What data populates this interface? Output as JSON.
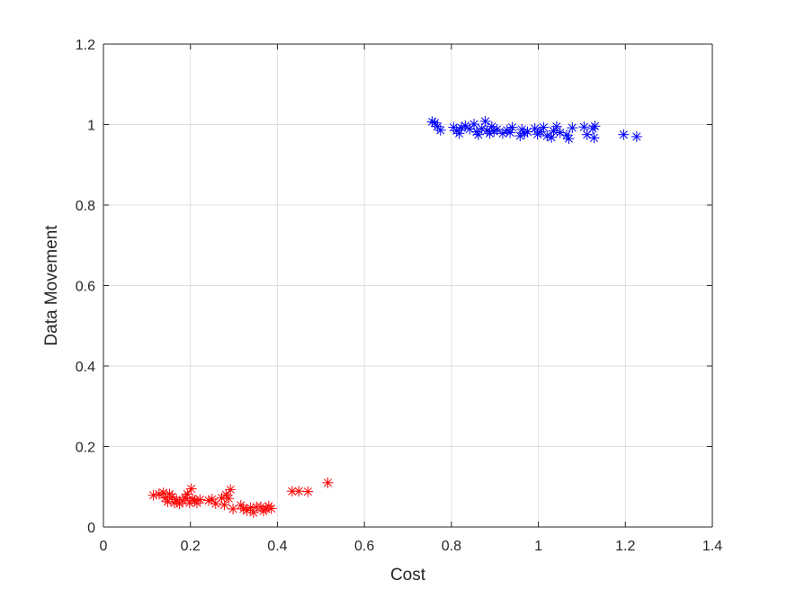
{
  "chart_data": {
    "type": "scatter",
    "title": "",
    "xlabel": "Cost",
    "ylabel": "Data Movement",
    "xlim": [
      0,
      1.4
    ],
    "ylim": [
      0,
      1.2
    ],
    "xticks": [
      0,
      0.2,
      0.4,
      0.6,
      0.8,
      1.0,
      1.2,
      1.4
    ],
    "xtick_labels": [
      "0",
      "0.2",
      "0.4",
      "0.6",
      "0.8",
      "1",
      "1.2",
      "1.4"
    ],
    "yticks": [
      0,
      0.2,
      0.4,
      0.6,
      0.8,
      1.0,
      1.2
    ],
    "ytick_labels": [
      "0",
      "0.2",
      "0.4",
      "0.6",
      "0.8",
      "1",
      "1.2"
    ],
    "grid": true,
    "marker": "asterisk",
    "series": [
      {
        "color": "#0000ff",
        "points": [
          [
            0.756,
            1.007
          ],
          [
            0.762,
            1.004
          ],
          [
            0.768,
            0.995
          ],
          [
            0.775,
            0.986
          ],
          [
            0.805,
            0.993
          ],
          [
            0.812,
            0.985
          ],
          [
            0.818,
            0.978
          ],
          [
            0.823,
            0.992
          ],
          [
            0.832,
            0.997
          ],
          [
            0.842,
            0.989
          ],
          [
            0.852,
            1.001
          ],
          [
            0.858,
            0.982
          ],
          [
            0.862,
            0.975
          ],
          [
            0.87,
            0.99
          ],
          [
            0.878,
            1.008
          ],
          [
            0.882,
            0.985
          ],
          [
            0.888,
            0.978
          ],
          [
            0.893,
            0.995
          ],
          [
            0.898,
            0.983
          ],
          [
            0.905,
            0.988
          ],
          [
            0.918,
            0.978
          ],
          [
            0.928,
            0.986
          ],
          [
            0.935,
            0.98
          ],
          [
            0.94,
            0.993
          ],
          [
            0.958,
            0.972
          ],
          [
            0.962,
            0.988
          ],
          [
            0.968,
            0.978
          ],
          [
            0.975,
            0.982
          ],
          [
            0.992,
            0.99
          ],
          [
            0.998,
            0.976
          ],
          [
            1.005,
            0.982
          ],
          [
            1.012,
            0.993
          ],
          [
            1.02,
            0.972
          ],
          [
            1.03,
            0.968
          ],
          [
            1.035,
            0.984
          ],
          [
            1.042,
            0.995
          ],
          [
            1.05,
            0.98
          ],
          [
            1.065,
            0.974
          ],
          [
            1.07,
            0.965
          ],
          [
            1.078,
            0.992
          ],
          [
            1.105,
            0.994
          ],
          [
            1.112,
            0.975
          ],
          [
            1.125,
            0.99
          ],
          [
            1.128,
            0.967
          ],
          [
            1.13,
            0.996
          ],
          [
            1.196,
            0.975
          ],
          [
            1.226,
            0.97
          ]
        ]
      },
      {
        "color": "#ff0000",
        "points": [
          [
            0.115,
            0.079
          ],
          [
            0.128,
            0.082
          ],
          [
            0.138,
            0.085
          ],
          [
            0.142,
            0.072
          ],
          [
            0.148,
            0.063
          ],
          [
            0.152,
            0.082
          ],
          [
            0.158,
            0.075
          ],
          [
            0.163,
            0.06
          ],
          [
            0.168,
            0.068
          ],
          [
            0.175,
            0.058
          ],
          [
            0.182,
            0.065
          ],
          [
            0.188,
            0.073
          ],
          [
            0.193,
            0.082
          ],
          [
            0.198,
            0.06
          ],
          [
            0.202,
            0.095
          ],
          [
            0.205,
            0.07
          ],
          [
            0.21,
            0.066
          ],
          [
            0.215,
            0.06
          ],
          [
            0.222,
            0.068
          ],
          [
            0.242,
            0.066
          ],
          [
            0.25,
            0.069
          ],
          [
            0.258,
            0.058
          ],
          [
            0.272,
            0.072
          ],
          [
            0.278,
            0.055
          ],
          [
            0.282,
            0.08
          ],
          [
            0.288,
            0.071
          ],
          [
            0.292,
            0.093
          ],
          [
            0.298,
            0.045
          ],
          [
            0.316,
            0.054
          ],
          [
            0.322,
            0.045
          ],
          [
            0.33,
            0.041
          ],
          [
            0.338,
            0.048
          ],
          [
            0.345,
            0.036
          ],
          [
            0.352,
            0.05
          ],
          [
            0.362,
            0.05
          ],
          [
            0.368,
            0.04
          ],
          [
            0.374,
            0.045
          ],
          [
            0.38,
            0.052
          ],
          [
            0.386,
            0.046
          ],
          [
            0.434,
            0.089
          ],
          [
            0.449,
            0.089
          ],
          [
            0.47,
            0.088
          ],
          [
            0.516,
            0.11
          ]
        ]
      }
    ]
  }
}
